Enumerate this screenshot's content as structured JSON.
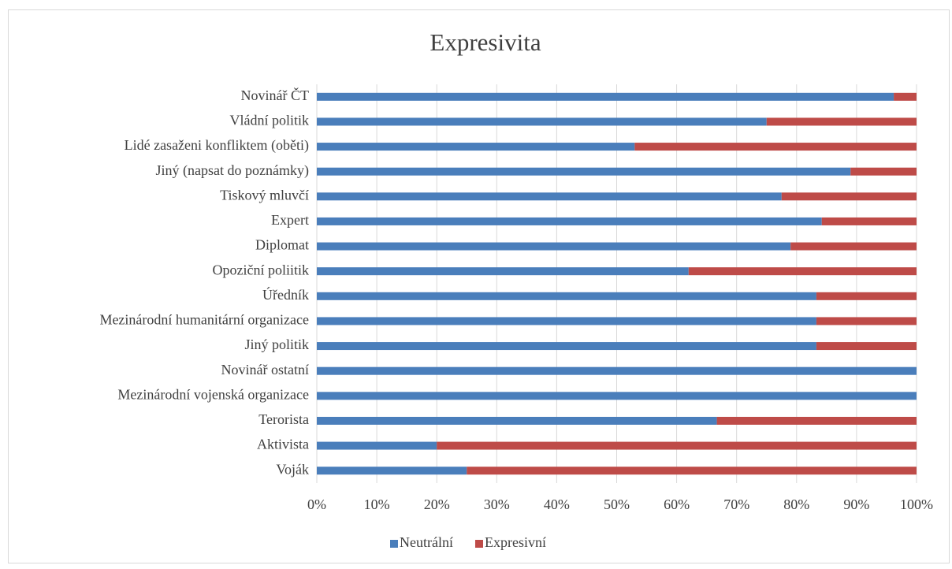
{
  "chart_data": {
    "type": "stacked_barh",
    "title": "Expresivita",
    "categories": [
      "Novinář ČT",
      "Vládní politik",
      "Lidé zasaženi konfliktem (oběti)",
      "Jiný (napsat do poznámky)",
      "Tiskový mluvčí",
      "Expert",
      "Diplomat",
      "Opoziční poliitik",
      "Úředník",
      "Mezinárodní humanitární organizace",
      "Jiný politik",
      "Novinář ostatní",
      "Mezinárodní vojenská organizace",
      "Terorista",
      "Aktivista",
      "Voják"
    ],
    "series": [
      {
        "name": "Neutrální",
        "color": "#4a7ebb",
        "values": [
          96.2,
          75,
          53,
          89,
          77.5,
          84.2,
          79,
          62,
          83.3,
          83.3,
          83.3,
          100,
          100,
          66.7,
          20,
          25
        ]
      },
      {
        "name": "Expresivní",
        "color": "#be4b48",
        "values": [
          3.8,
          25,
          47,
          11,
          22.5,
          15.8,
          21,
          38,
          16.7,
          16.7,
          16.7,
          0,
          0,
          33.3,
          80,
          75
        ]
      }
    ],
    "xlim": [
      0,
      100
    ],
    "xticks": [
      {
        "value": 0,
        "label": "0%"
      },
      {
        "value": 10,
        "label": "10%"
      },
      {
        "value": 20,
        "label": "20%"
      },
      {
        "value": 30,
        "label": "30%"
      },
      {
        "value": 40,
        "label": "40%"
      },
      {
        "value": 50,
        "label": "50%"
      },
      {
        "value": 60,
        "label": "60%"
      },
      {
        "value": 70,
        "label": "70%"
      },
      {
        "value": 80,
        "label": "80%"
      },
      {
        "value": 90,
        "label": "90%"
      },
      {
        "value": 100,
        "label": "100%"
      }
    ],
    "grid": true,
    "legend": "bottom"
  }
}
